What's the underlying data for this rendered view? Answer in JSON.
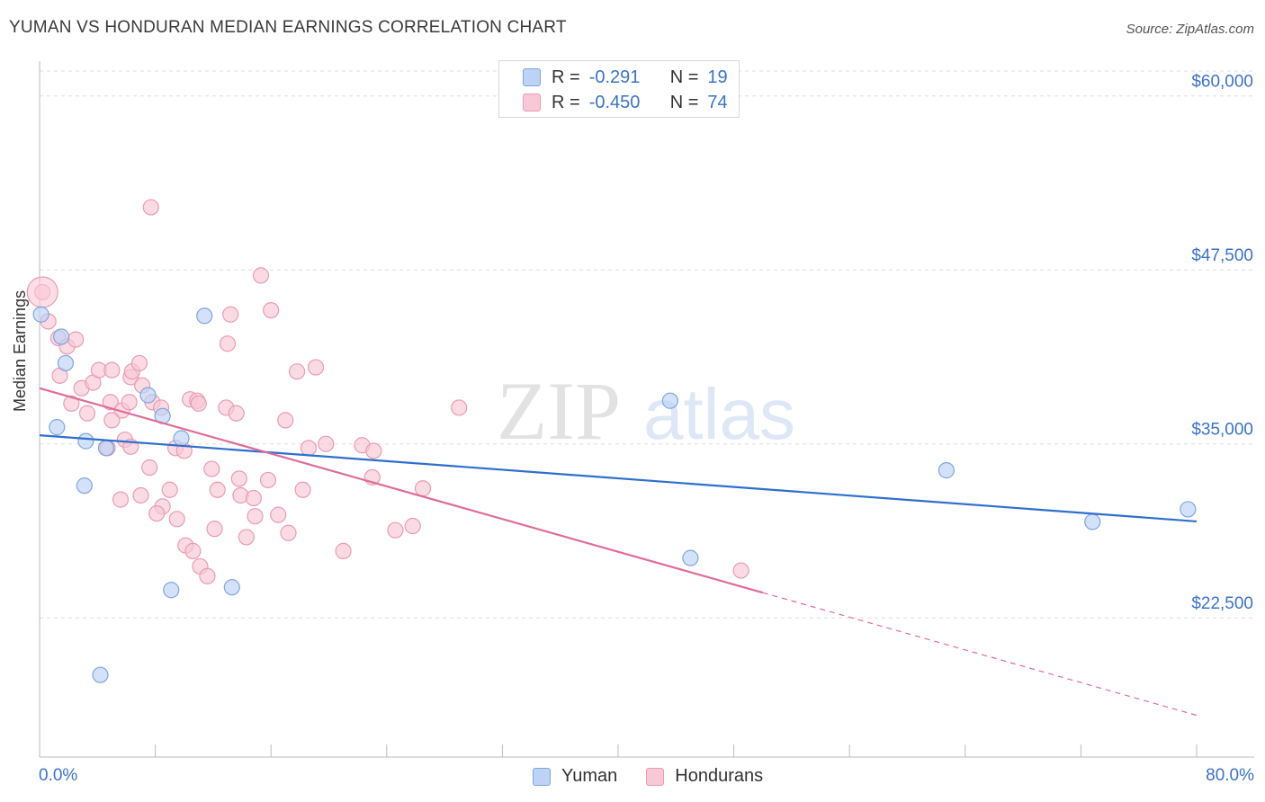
{
  "title": "YUMAN VS HONDURAN MEDIAN EARNINGS CORRELATION CHART",
  "source_label": "Source:",
  "source_value": "ZipAtlas.com",
  "watermark": {
    "zip": "ZIP",
    "atlas": "atlas"
  },
  "colors": {
    "yuman_fill": "#bcd3f5",
    "yuman_stroke": "#7fa6df",
    "yuman_line": "#2f6fcd",
    "hond_fill": "#f8c8d6",
    "hond_stroke": "#ea9bb4",
    "hond_line": "#e06c98",
    "axis_text": "#3b72c9",
    "grid": "#dddddd"
  },
  "legend": {
    "rows": [
      {
        "r_label": "R =",
        "r_value": "-0.291",
        "n_label": "N =",
        "n_value": "19"
      },
      {
        "r_label": "R =",
        "r_value": "-0.450",
        "n_label": "N =",
        "n_value": "74"
      }
    ]
  },
  "bottom_legend": {
    "yuman": "Yuman",
    "hondurans": "Hondurans"
  },
  "chart_data": {
    "type": "scatter",
    "title": "YUMAN VS HONDURAN MEDIAN EARNINGS CORRELATION CHART",
    "xlabel": "",
    "ylabel": "Median Earnings",
    "x_unit": "percent",
    "xlim": [
      0,
      80
    ],
    "ylim": [
      12500,
      62500
    ],
    "x_tick_labels": [
      "0.0%",
      "80.0%"
    ],
    "y_ticks": [
      22500,
      35000,
      47500,
      60000
    ],
    "y_tick_labels": [
      "$22,500",
      "$35,000",
      "$47,500",
      "$60,000"
    ],
    "grid": true,
    "series": [
      {
        "name": "Yuman",
        "r": -0.291,
        "n": 19,
        "points": [
          [
            0.1,
            44300
          ],
          [
            1.5,
            42700
          ],
          [
            1.8,
            40800
          ],
          [
            1.2,
            36200
          ],
          [
            3.2,
            35200
          ],
          [
            4.6,
            34700
          ],
          [
            3.1,
            32000
          ],
          [
            7.5,
            38500
          ],
          [
            9.8,
            35400
          ],
          [
            8.5,
            37000
          ],
          [
            11.4,
            44200
          ],
          [
            9.1,
            24500
          ],
          [
            13.3,
            24700
          ],
          [
            4.2,
            18400
          ],
          [
            43.6,
            38100
          ],
          [
            45.0,
            26800
          ],
          [
            62.7,
            33100
          ],
          [
            72.8,
            29400
          ],
          [
            79.4,
            30300
          ]
        ],
        "trend": {
          "x0": 0,
          "y0": 35620,
          "x1": 80,
          "y1": 29430,
          "dashed_from": null
        }
      },
      {
        "name": "Hondurans",
        "r": -0.45,
        "n": 74,
        "points": [
          [
            0.2,
            45900
          ],
          [
            0.6,
            43800
          ],
          [
            1.3,
            42600
          ],
          [
            1.9,
            42000
          ],
          [
            2.5,
            42500
          ],
          [
            1.4,
            39900
          ],
          [
            2.9,
            39000
          ],
          [
            2.2,
            37900
          ],
          [
            3.3,
            37200
          ],
          [
            3.7,
            39400
          ],
          [
            4.1,
            40300
          ],
          [
            5.0,
            40300
          ],
          [
            4.9,
            38000
          ],
          [
            5.7,
            37400
          ],
          [
            6.3,
            39800
          ],
          [
            6.2,
            38000
          ],
          [
            5.0,
            36700
          ],
          [
            6.4,
            40200
          ],
          [
            6.9,
            40800
          ],
          [
            7.1,
            39200
          ],
          [
            7.8,
            38000
          ],
          [
            8.4,
            37600
          ],
          [
            4.7,
            34700
          ],
          [
            5.9,
            35300
          ],
          [
            6.3,
            34800
          ],
          [
            7.6,
            33300
          ],
          [
            7.0,
            31300
          ],
          [
            5.6,
            31000
          ],
          [
            8.5,
            30500
          ],
          [
            8.1,
            30000
          ],
          [
            9.0,
            31700
          ],
          [
            9.4,
            34700
          ],
          [
            10.4,
            38200
          ],
          [
            10.9,
            38100
          ],
          [
            11.9,
            33200
          ],
          [
            12.3,
            31700
          ],
          [
            10.0,
            34500
          ],
          [
            9.5,
            29600
          ],
          [
            10.1,
            27700
          ],
          [
            10.6,
            27300
          ],
          [
            11.1,
            26200
          ],
          [
            11.6,
            25500
          ],
          [
            12.1,
            28900
          ],
          [
            12.9,
            37600
          ],
          [
            13.6,
            37200
          ],
          [
            13.2,
            44300
          ],
          [
            13.0,
            42200
          ],
          [
            13.9,
            31300
          ],
          [
            14.8,
            31100
          ],
          [
            14.3,
            28300
          ],
          [
            14.9,
            29800
          ],
          [
            15.8,
            32400
          ],
          [
            17.0,
            36700
          ],
          [
            18.2,
            31700
          ],
          [
            19.1,
            40500
          ],
          [
            17.8,
            40200
          ],
          [
            16.0,
            44600
          ],
          [
            7.7,
            52000
          ],
          [
            15.3,
            47100
          ],
          [
            17.2,
            28600
          ],
          [
            18.6,
            34700
          ],
          [
            21.0,
            27300
          ],
          [
            22.3,
            34900
          ],
          [
            23.1,
            34500
          ],
          [
            24.6,
            28800
          ],
          [
            25.8,
            29100
          ],
          [
            26.5,
            31800
          ],
          [
            29.0,
            37600
          ],
          [
            48.5,
            25900
          ],
          [
            11.0,
            37900
          ],
          [
            13.8,
            32500
          ],
          [
            16.5,
            29900
          ],
          [
            19.8,
            35000
          ],
          [
            23.0,
            32600
          ]
        ],
        "trend": {
          "x0": 0,
          "y0": 39000,
          "x1": 80,
          "y1": 15500,
          "dashed_from": 50
        }
      }
    ]
  }
}
